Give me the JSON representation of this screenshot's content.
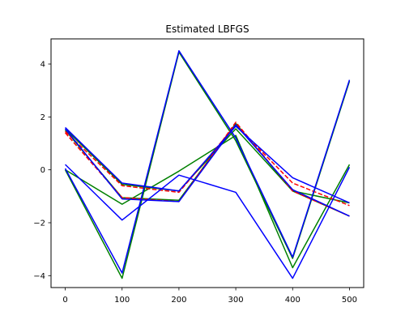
{
  "chart_data": {
    "type": "line",
    "title": "Estimated LBFGS",
    "xlabel": "",
    "ylabel": "",
    "x": [
      0,
      100,
      200,
      300,
      400,
      500
    ],
    "xlim": [
      -25,
      525
    ],
    "ylim": [
      -4.45,
      4.95
    ],
    "xticks": [
      0,
      100,
      200,
      300,
      400,
      500
    ],
    "yticks": [
      -4,
      -2,
      0,
      2,
      4
    ],
    "grid": false,
    "series": [
      {
        "color": "#008000",
        "dash": "solid",
        "values": [
          0.0,
          -4.1,
          4.45,
          1.1,
          -3.35,
          3.35
        ]
      },
      {
        "color": "#008000",
        "dash": "solid",
        "values": [
          0.0,
          -1.3,
          -0.05,
          1.3,
          -3.7,
          0.2
        ]
      },
      {
        "color": "#008000",
        "dash": "solid",
        "values": [
          1.55,
          -0.55,
          -0.8,
          1.55,
          -0.8,
          -1.25
        ]
      },
      {
        "color": "#008000",
        "dash": "solid",
        "values": [
          1.5,
          -1.05,
          -1.15,
          1.75,
          -0.8,
          -1.75
        ]
      },
      {
        "color": "#ff0000",
        "dash": "dashed",
        "values": [
          1.4,
          -1.05,
          -1.2,
          1.8,
          -0.8,
          -1.75
        ]
      },
      {
        "color": "#ff0000",
        "dash": "dashed",
        "values": [
          1.45,
          -0.6,
          -0.85,
          1.7,
          -0.5,
          -1.35
        ]
      },
      {
        "color": "#0000ff",
        "dash": "solid",
        "values": [
          0.2,
          -1.9,
          -0.2,
          -0.85,
          -4.1,
          0.1
        ]
      },
      {
        "color": "#0000ff",
        "dash": "solid",
        "values": [
          0.05,
          -3.9,
          4.5,
          1.2,
          -3.3,
          3.4
        ]
      },
      {
        "color": "#0000ff",
        "dash": "solid",
        "values": [
          1.6,
          -0.5,
          -0.8,
          1.65,
          -0.3,
          -1.25
        ]
      },
      {
        "color": "#0000ff",
        "dash": "solid",
        "values": [
          1.55,
          -1.1,
          -1.2,
          1.7,
          -0.75,
          -1.75
        ]
      }
    ]
  }
}
